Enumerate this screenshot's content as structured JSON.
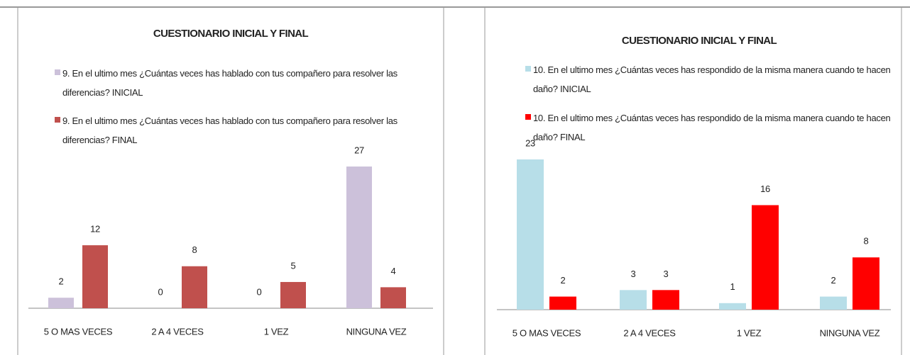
{
  "chart_data": [
    {
      "type": "bar",
      "title": "CUESTIONARIO INICIAL Y FINAL",
      "categories": [
        "5 O MAS VECES",
        "2 A 4 VECES",
        "1 VEZ",
        "NINGUNA VEZ"
      ],
      "series": [
        {
          "name": "9. En el ultimo mes ¿Cuántas veces has hablado con tus compañero para resolver las diferencias? INICIAL",
          "color": "#ccc1da",
          "values": [
            2,
            0,
            0,
            27
          ]
        },
        {
          "name": "9. En el ultimo mes ¿Cuántas veces has hablado con tus compañero para resolver las diferencias? FINAL",
          "color": "#c0504d",
          "values": [
            12,
            8,
            5,
            4
          ]
        }
      ]
    },
    {
      "type": "bar",
      "title": "CUESTIONARIO INICIAL Y FINAL",
      "categories": [
        "5 O MAS VECES",
        "2 A 4 VECES",
        "1 VEZ",
        "NINGUNA VEZ"
      ],
      "series": [
        {
          "name": "10. En el ultimo mes ¿Cuántas veces has respondido de la misma manera cuando te hacen daño? INICIAL",
          "color": "#b7dee8",
          "values": [
            23,
            3,
            1,
            2
          ]
        },
        {
          "name": "10. En el ultimo mes ¿Cuántas veces has respondido de la misma manera cuando te hacen daño? FINAL",
          "color": "#ff0000",
          "values": [
            2,
            3,
            16,
            8
          ]
        }
      ]
    }
  ]
}
